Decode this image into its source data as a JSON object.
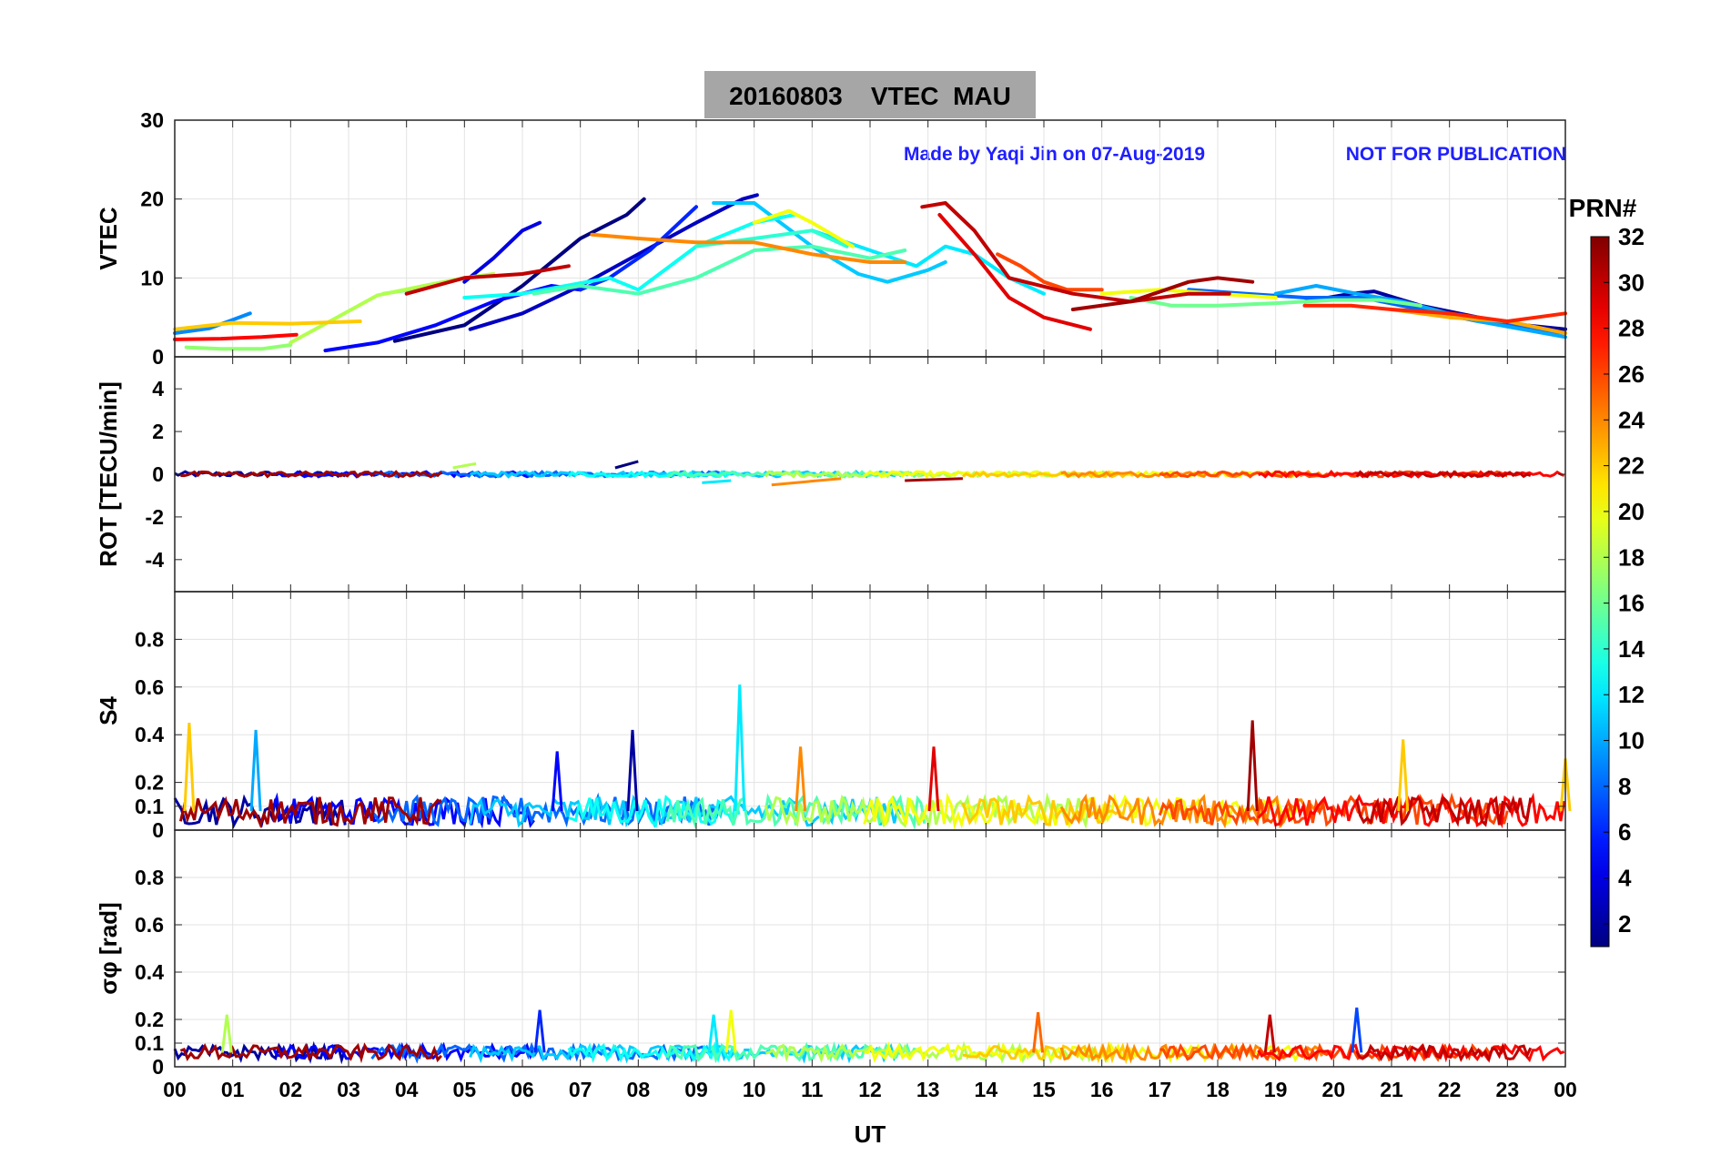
{
  "figure": {
    "title": "20160803    VTEC  MAU",
    "watermark_left": "Made by Yaqi Jin on 07-Aug-2019",
    "watermark_right": "NOT FOR PUBLICATION",
    "watermark_color": "#1f1fff",
    "title_bg_color": "#a6a6a6"
  },
  "chart_data": {
    "type": "line",
    "xlabel": "UT",
    "x_tick_labels": [
      "00",
      "01",
      "02",
      "03",
      "04",
      "05",
      "06",
      "07",
      "08",
      "09",
      "10",
      "11",
      "12",
      "13",
      "14",
      "15",
      "16",
      "17",
      "18",
      "19",
      "20",
      "21",
      "22",
      "23",
      "00"
    ],
    "xlim": [
      0,
      24
    ],
    "colorbar": {
      "label": "PRN#",
      "range": [
        1,
        32
      ],
      "tick_labels": [
        "2",
        "4",
        "6",
        "8",
        "10",
        "12",
        "14",
        "16",
        "18",
        "20",
        "22",
        "24",
        "26",
        "28",
        "30",
        "32"
      ],
      "colormap": "jet"
    },
    "panels": [
      {
        "ylabel": "VTEC",
        "ylim": [
          0,
          30
        ],
        "y_tick_labels": [
          "0",
          "10",
          "20",
          "30"
        ],
        "y_tick_values": [
          0,
          10,
          20,
          30
        ],
        "grid": true,
        "series": [
          {
            "prn": 1,
            "x": [
              3.8,
              5.0,
              6.0,
              7.0,
              7.8,
              8.1
            ],
            "y": [
              2,
              4,
              9,
              15,
              18,
              20
            ]
          },
          {
            "prn": 2,
            "x": [
              19.5,
              20.3,
              20.7,
              21.5,
              22.5,
              23.3,
              24.0
            ],
            "y": [
              7,
              8,
              8.3,
              6.5,
              5,
              4,
              3.5
            ]
          },
          {
            "prn": 3,
            "x": [
              5.1,
              6.0,
              7.0,
              8.0,
              9.0,
              9.8,
              10.05
            ],
            "y": [
              3.5,
              5.5,
              9,
              13,
              17,
              20,
              20.5
            ]
          },
          {
            "prn": 4,
            "x": [
              5.0,
              5.5,
              6.0,
              6.3
            ],
            "y": [
              9.5,
              12.5,
              16,
              17
            ]
          },
          {
            "prn": 5,
            "x": [
              2.6,
              3.5,
              4.5,
              5.5,
              6.5,
              7.0
            ],
            "y": [
              0.8,
              1.8,
              4,
              7,
              9,
              8.5
            ]
          },
          {
            "prn": 6,
            "x": [
              7.0,
              7.5,
              8.2,
              9.0
            ],
            "y": [
              8.5,
              10,
              13.5,
              19
            ]
          },
          {
            "prn": 8,
            "x": [
              17.5,
              18.5,
              19.5,
              20.5,
              21.5,
              22.5,
              24.0
            ],
            "y": [
              8.5,
              8,
              7.5,
              7.5,
              6,
              4.5,
              3
            ]
          },
          {
            "prn": 9,
            "x": [
              0.0,
              0.6,
              1.3
            ],
            "y": [
              3,
              3.6,
              5.5
            ]
          },
          {
            "prn": 10,
            "x": [
              19.0,
              19.7,
              20.4,
              21.2,
              22.5,
              24.0
            ],
            "y": [
              8,
              9,
              8,
              7,
              4.5,
              2.5
            ]
          },
          {
            "prn": 11,
            "x": [
              9.3,
              10.0,
              11.0,
              11.8,
              12.3,
              13.0,
              13.3
            ],
            "y": [
              19.5,
              19.5,
              14,
              10.5,
              9.5,
              11,
              12
            ]
          },
          {
            "prn": 12,
            "x": [
              11.0,
              12.0,
              12.8,
              13.3,
              13.8,
              14.4,
              15.0
            ],
            "y": [
              16,
              13.5,
              11.5,
              14,
              13,
              10,
              8
            ]
          },
          {
            "prn": 13,
            "x": [
              5.0,
              6.0,
              7.5,
              8.0,
              9.0,
              10.0,
              10.7
            ],
            "y": [
              7.5,
              8,
              10,
              8.5,
              14,
              17,
              18
            ]
          },
          {
            "prn": 14,
            "x": [
              9.0,
              10.0,
              11.0,
              11.6
            ],
            "y": [
              14,
              15,
              16,
              14
            ]
          },
          {
            "prn": 15,
            "x": [
              6.2,
              7.0,
              8.0,
              9.0,
              10.0,
              11.0,
              12.0,
              12.6
            ],
            "y": [
              8,
              9,
              8,
              10,
              13.5,
              14,
              12.5,
              13.5
            ]
          },
          {
            "prn": 16,
            "x": [
              3.6,
              4.5,
              5.0
            ],
            "y": [
              8,
              9,
              10
            ]
          },
          {
            "prn": 16,
            "x": [
              16.5,
              17.2,
              18.0,
              19.0,
              20.0,
              20.8,
              21.5
            ],
            "y": [
              7.5,
              6.5,
              6.5,
              6.8,
              7.2,
              7.2,
              6.5
            ]
          },
          {
            "prn": 17,
            "x": [
              0.2,
              0.8,
              1.5,
              2.0
            ],
            "y": [
              1.2,
              1,
              1,
              1.5
            ]
          },
          {
            "prn": 18,
            "x": [
              2.0,
              2.8,
              3.5,
              4.3,
              5.0,
              5.5
            ],
            "y": [
              1.8,
              5,
              7.8,
              9,
              10,
              10.5
            ]
          },
          {
            "prn": 20,
            "x": [
              10.0,
              10.6,
              11.0,
              11.7
            ],
            "y": [
              17,
              18.5,
              17,
              14
            ]
          },
          {
            "prn": 20,
            "x": [
              16.0,
              17.0,
              18.0,
              19.0
            ],
            "y": [
              8,
              8.5,
              8,
              7.5
            ]
          },
          {
            "prn": 22,
            "x": [
              0.0,
              1.0,
              2.0,
              2.8,
              3.2
            ],
            "y": [
              3.5,
              4.3,
              4.2,
              4.4,
              4.5
            ]
          },
          {
            "prn": 23,
            "x": [
              21.0,
              22.0,
              23.0,
              24.0
            ],
            "y": [
              6,
              5,
              4.5,
              3
            ]
          },
          {
            "prn": 24,
            "x": [
              7.2,
              8.0,
              9.0,
              10.0,
              11.0,
              12.0,
              12.6
            ],
            "y": [
              15.5,
              15,
              14.5,
              14.5,
              13,
              12,
              12
            ]
          },
          {
            "prn": 26,
            "x": [
              14.2,
              14.6,
              15.0,
              15.4,
              16.0
            ],
            "y": [
              13,
              11.5,
              9.5,
              8.5,
              8.5
            ]
          },
          {
            "prn": 27,
            "x": [
              19.5,
              20.3,
              21.0,
              22.0,
              23.0,
              24.0
            ],
            "y": [
              6.5,
              6.5,
              6,
              5.5,
              4.5,
              5.5
            ]
          },
          {
            "prn": 28,
            "x": [
              0.0,
              0.8,
              1.5,
              2.1
            ],
            "y": [
              2.2,
              2.3,
              2.5,
              2.8
            ]
          },
          {
            "prn": 29,
            "x": [
              13.2,
              13.8,
              14.4,
              15.0,
              15.8
            ],
            "y": [
              18,
              13,
              7.5,
              5,
              3.5
            ]
          },
          {
            "prn": 30,
            "x": [
              4.0,
              5.0,
              6.0,
              6.8
            ],
            "y": [
              8,
              10,
              10.5,
              11.5
            ]
          },
          {
            "prn": 30,
            "x": [
              12.9,
              13.3,
              13.8,
              14.4,
              15.5,
              16.5,
              17.5,
              18.2
            ],
            "y": [
              19,
              19.5,
              16,
              10,
              8,
              7,
              8,
              8
            ]
          },
          {
            "prn": 31,
            "x": [
              15.5,
              16.5,
              17.5,
              18.0,
              18.6
            ],
            "y": [
              6,
              7,
              9.5,
              10,
              9.5
            ]
          }
        ]
      },
      {
        "ylabel": "ROT [TECU/min]",
        "ylim": [
          -5.5,
          5.5
        ],
        "y_tick_labels": [
          "-4",
          "-2",
          "0",
          "2",
          "4"
        ],
        "y_tick_values": [
          -4,
          -2,
          0,
          2,
          4
        ],
        "grid": false,
        "baseline": 0,
        "noise_amplitude": 0.12,
        "features": [
          {
            "prn": 1,
            "x": [
              7.6,
              8.0
            ],
            "y": [
              0.3,
              0.6
            ]
          },
          {
            "prn": 18,
            "x": [
              4.8,
              5.2
            ],
            "y": [
              0.3,
              0.5
            ]
          },
          {
            "prn": 12,
            "x": [
              9.1,
              9.6
            ],
            "y": [
              -0.4,
              -0.3
            ]
          },
          {
            "prn": 24,
            "x": [
              10.3,
              11.5
            ],
            "y": [
              -0.5,
              -0.2
            ]
          },
          {
            "prn": 31,
            "x": [
              12.6,
              13.6
            ],
            "y": [
              -0.3,
              -0.2
            ]
          }
        ]
      },
      {
        "ylabel": "S4",
        "ylim": [
          0,
          1
        ],
        "y_tick_labels": [
          "0",
          "0.1",
          "0.2",
          "0.4",
          "0.6",
          "0.8"
        ],
        "y_tick_values": [
          0,
          0.1,
          0.2,
          0.4,
          0.6,
          0.8
        ],
        "grid": true,
        "baseline": 0.08,
        "noise_amplitude": 0.06,
        "spikes": [
          {
            "prn": 22,
            "x": 0.25,
            "y": 0.45
          },
          {
            "prn": 10,
            "x": 1.4,
            "y": 0.42
          },
          {
            "prn": 5,
            "x": 6.6,
            "y": 0.33
          },
          {
            "prn": 2,
            "x": 7.9,
            "y": 0.42
          },
          {
            "prn": 12,
            "x": 9.75,
            "y": 0.61
          },
          {
            "prn": 24,
            "x": 10.8,
            "y": 0.35
          },
          {
            "prn": 29,
            "x": 13.1,
            "y": 0.35
          },
          {
            "prn": 31,
            "x": 18.6,
            "y": 0.46
          },
          {
            "prn": 22,
            "x": 21.2,
            "y": 0.38
          },
          {
            "prn": 22,
            "x": 24.0,
            "y": 0.3
          }
        ]
      },
      {
        "ylabel": "σφ [rad]",
        "ylim": [
          0,
          1
        ],
        "y_tick_labels": [
          "0",
          "0.1",
          "0.2",
          "0.4",
          "0.6",
          "0.8"
        ],
        "y_tick_values": [
          0,
          0.1,
          0.2,
          0.4,
          0.6,
          0.8
        ],
        "grid": true,
        "baseline": 0.06,
        "noise_amplitude": 0.03,
        "spikes": [
          {
            "prn": 18,
            "x": 0.9,
            "y": 0.22
          },
          {
            "prn": 6,
            "x": 6.3,
            "y": 0.24
          },
          {
            "prn": 12,
            "x": 9.3,
            "y": 0.22
          },
          {
            "prn": 20,
            "x": 9.6,
            "y": 0.24
          },
          {
            "prn": 25,
            "x": 14.9,
            "y": 0.23
          },
          {
            "prn": 30,
            "x": 18.9,
            "y": 0.22
          },
          {
            "prn": 7,
            "x": 20.4,
            "y": 0.25
          }
        ]
      }
    ]
  }
}
